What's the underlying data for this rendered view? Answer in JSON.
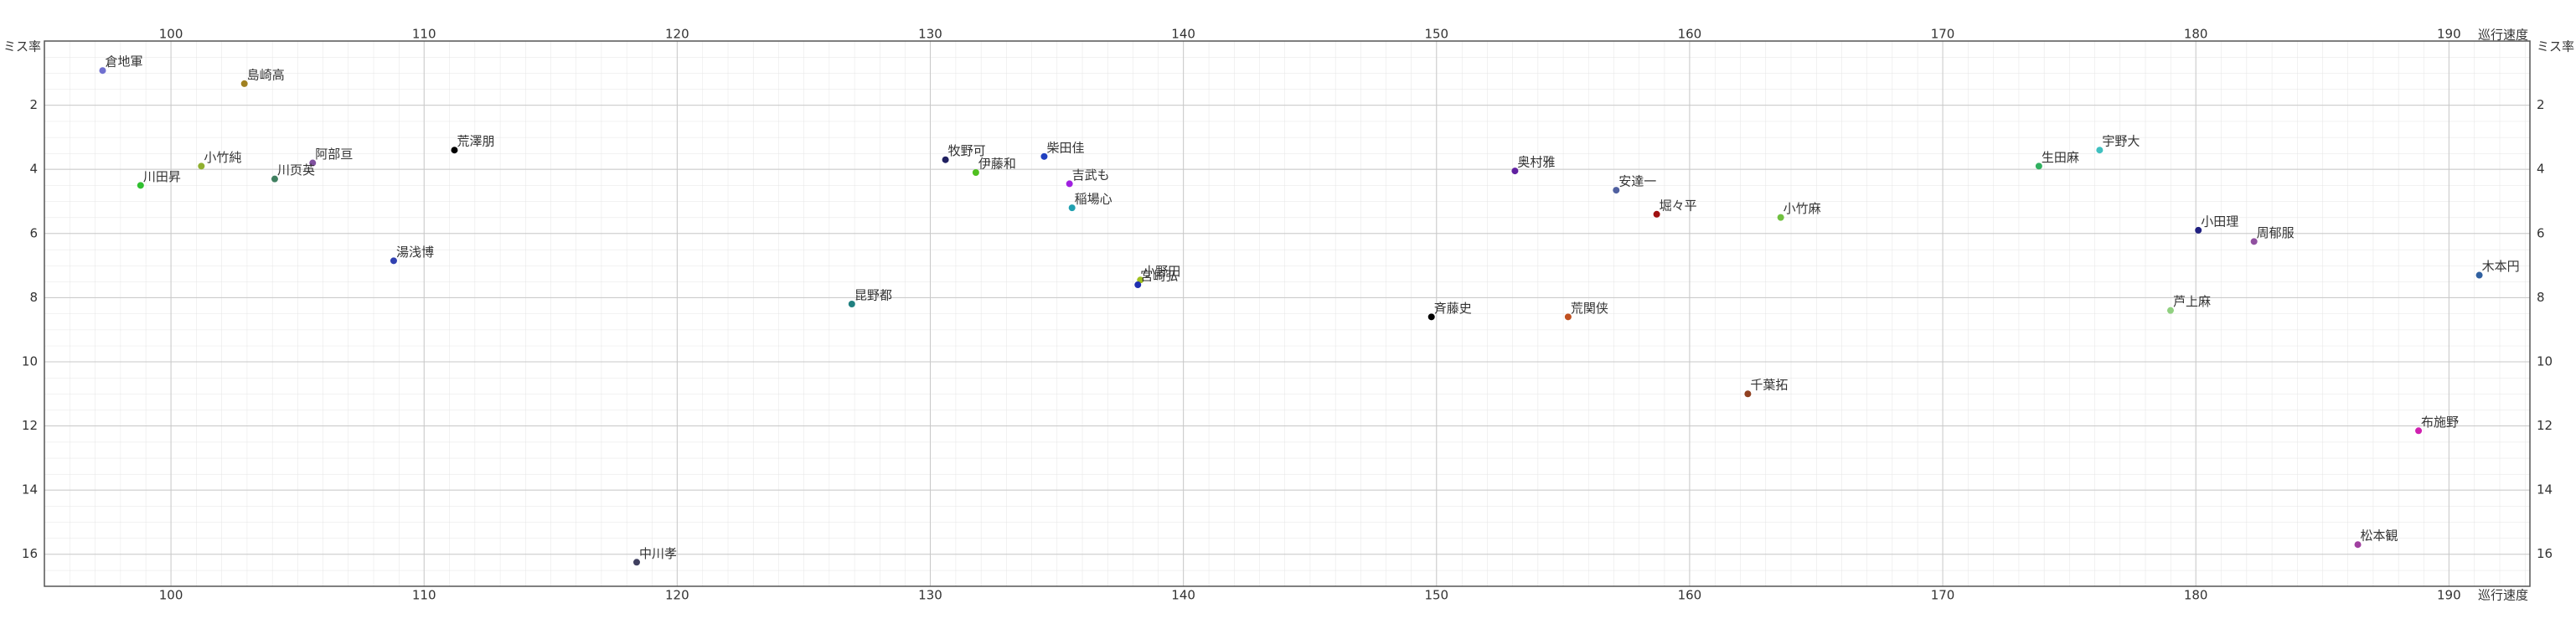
{
  "chart_data": {
    "type": "scatter",
    "x_label": "巡行速度",
    "y_label": "ミス率",
    "xlim": [
      95,
      193.2
    ],
    "ylim": [
      0,
      17
    ],
    "y_inverted": true,
    "xticks": [
      100,
      110,
      120,
      130,
      140,
      150,
      160,
      170,
      180,
      190
    ],
    "yticks": [
      2,
      4,
      6,
      8,
      10,
      12,
      14,
      16
    ],
    "grid": true,
    "points": [
      {
        "name": "倉地軍",
        "x": 97.3,
        "y": 0.92,
        "color": "#7070d0"
      },
      {
        "name": "島崎高",
        "x": 102.9,
        "y": 1.33,
        "color": "#a08020"
      },
      {
        "name": "小竹純",
        "x": 101.2,
        "y": 3.9,
        "color": "#90b030"
      },
      {
        "name": "阿部亘",
        "x": 105.6,
        "y": 3.8,
        "color": "#8050a0"
      },
      {
        "name": "川田昇",
        "x": 98.8,
        "y": 4.5,
        "color": "#30c030"
      },
      {
        "name": "川页英",
        "x": 104.1,
        "y": 4.3,
        "color": "#408060"
      },
      {
        "name": "荒澤朋",
        "x": 111.2,
        "y": 3.4,
        "color": "#000000"
      },
      {
        "name": "湯浅博",
        "x": 108.8,
        "y": 6.85,
        "color": "#3040b0"
      },
      {
        "name": "中川孝",
        "x": 118.4,
        "y": 16.25,
        "color": "#404060"
      },
      {
        "name": "昆野都",
        "x": 126.9,
        "y": 8.2,
        "color": "#208080"
      },
      {
        "name": "牧野可",
        "x": 130.6,
        "y": 3.7,
        "color": "#202060"
      },
      {
        "name": "伊藤和",
        "x": 131.8,
        "y": 4.1,
        "color": "#50c020"
      },
      {
        "name": "柴田佳",
        "x": 134.5,
        "y": 3.6,
        "color": "#2040c0"
      },
      {
        "name": "吉武も",
        "x": 135.5,
        "y": 4.45,
        "color": "#a020e0"
      },
      {
        "name": "稲場心",
        "x": 135.6,
        "y": 5.2,
        "color": "#20a0b0"
      },
      {
        "name": "小野田",
        "x": 138.3,
        "y": 7.45,
        "color": "#a0c020"
      },
      {
        "name": "宮崎弘",
        "x": 138.2,
        "y": 7.6,
        "color": "#2030b0"
      },
      {
        "name": "斉藤史",
        "x": 149.8,
        "y": 8.6,
        "color": "#000000"
      },
      {
        "name": "奥村雅",
        "x": 153.1,
        "y": 4.05,
        "color": "#6020a0"
      },
      {
        "name": "安達一",
        "x": 157.1,
        "y": 4.65,
        "color": "#5060a0"
      },
      {
        "name": "荒関侠",
        "x": 155.2,
        "y": 8.6,
        "color": "#c05020"
      },
      {
        "name": "堀々平",
        "x": 158.7,
        "y": 5.4,
        "color": "#a01010"
      },
      {
        "name": "千葉拓",
        "x": 162.3,
        "y": 11.0,
        "color": "#904020"
      },
      {
        "name": "小竹麻",
        "x": 163.6,
        "y": 5.5,
        "color": "#70c040"
      },
      {
        "name": "生田麻",
        "x": 173.8,
        "y": 3.9,
        "color": "#30b060"
      },
      {
        "name": "宇野大",
        "x": 176.2,
        "y": 3.4,
        "color": "#40c0c0"
      },
      {
        "name": "小田理",
        "x": 180.1,
        "y": 5.9,
        "color": "#202080"
      },
      {
        "name": "周郁服",
        "x": 182.3,
        "y": 6.25,
        "color": "#9050a0"
      },
      {
        "name": "芦上麻",
        "x": 179.0,
        "y": 8.4,
        "color": "#90d080"
      },
      {
        "name": "木本円",
        "x": 191.2,
        "y": 7.3,
        "color": "#3060a0"
      },
      {
        "name": "布施野",
        "x": 188.8,
        "y": 12.15,
        "color": "#d020b0"
      },
      {
        "name": "松本観",
        "x": 186.4,
        "y": 15.7,
        "color": "#a040a0"
      }
    ]
  }
}
